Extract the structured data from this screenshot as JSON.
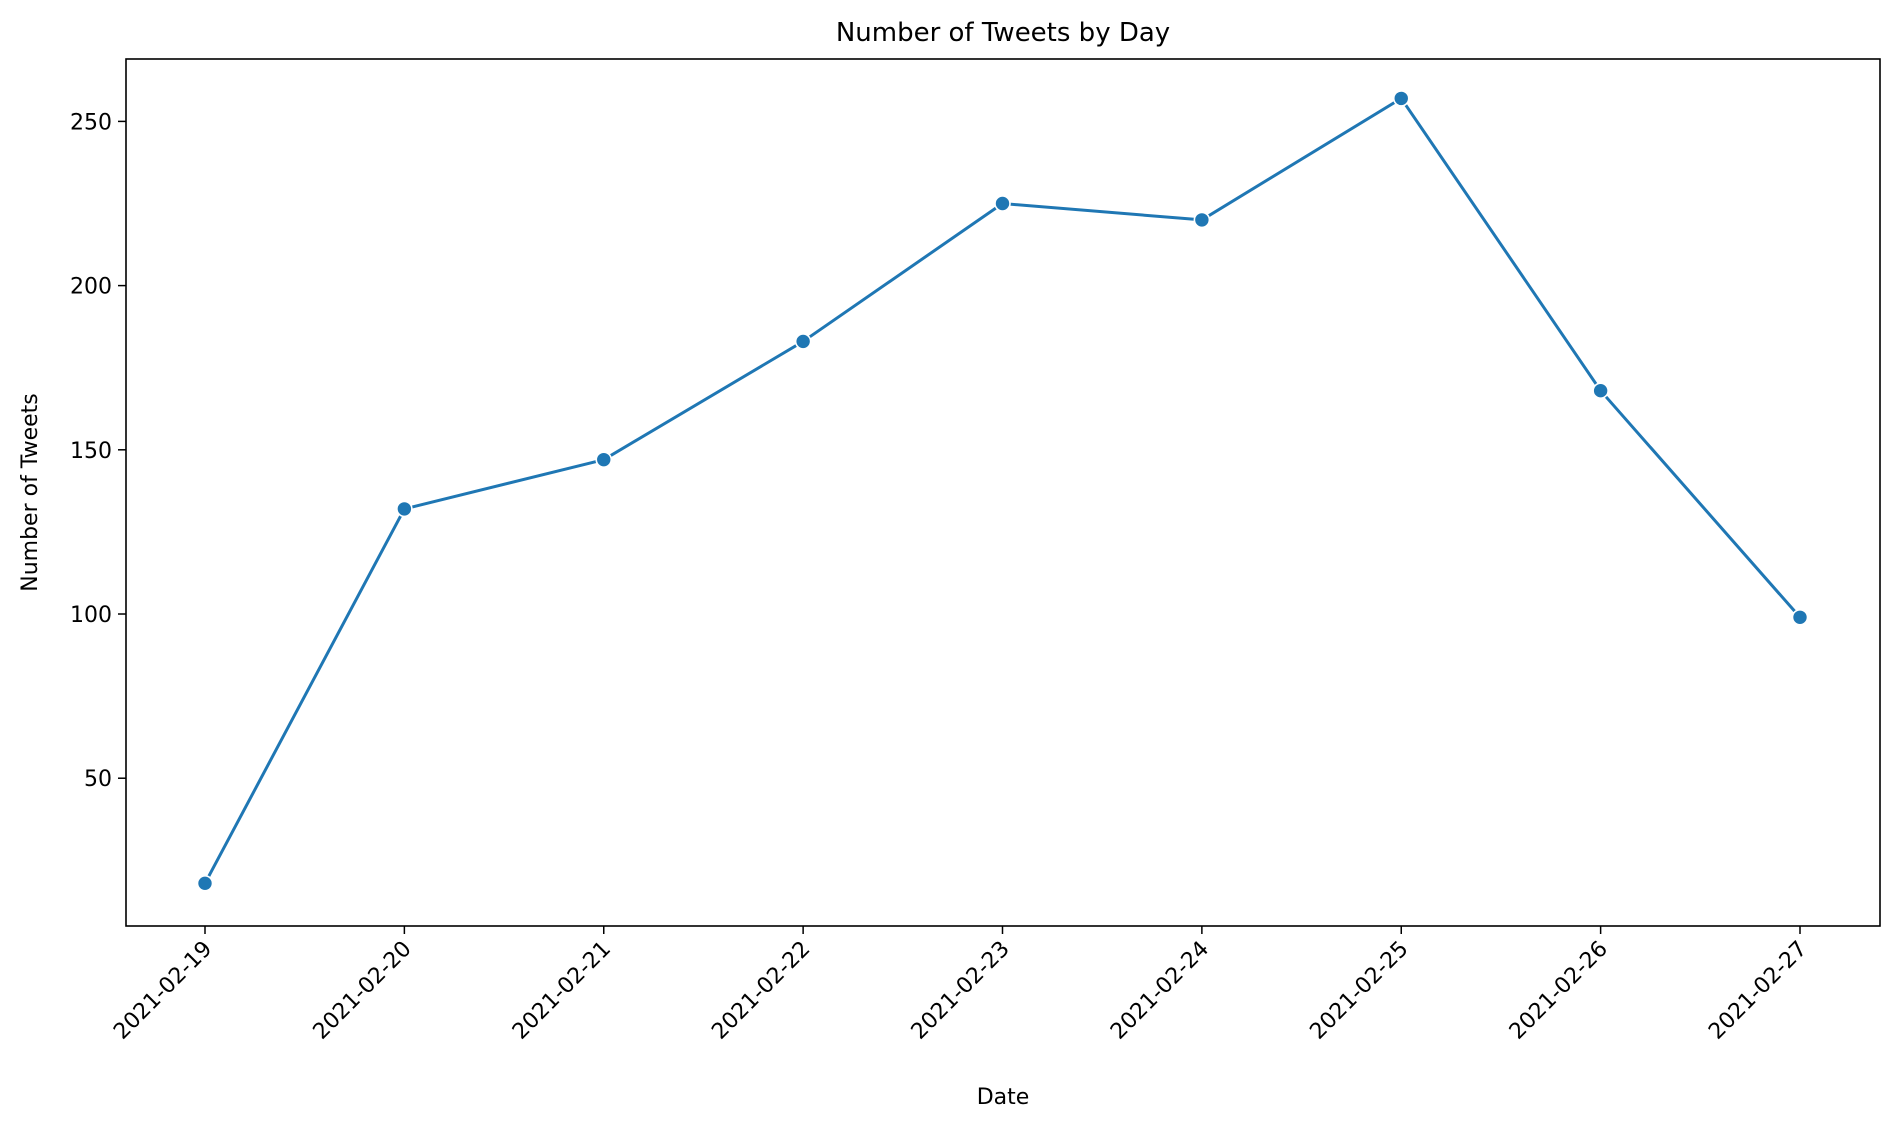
{
  "chart_data": {
    "type": "line",
    "title": "Number of Tweets by Day",
    "xlabel": "Date",
    "ylabel": "Number of Tweets",
    "x": [
      "2021-02-19",
      "2021-02-20",
      "2021-02-21",
      "2021-02-22",
      "2021-02-23",
      "2021-02-24",
      "2021-02-25",
      "2021-02-26",
      "2021-02-27"
    ],
    "series": [
      {
        "values": [
          18,
          132,
          147,
          183,
          225,
          220,
          257,
          168,
          99
        ]
      }
    ],
    "ylim": [
      5,
      269
    ],
    "yticks": [
      50,
      100,
      150,
      200,
      250
    ],
    "grid": false,
    "color": "#1f77b4",
    "marker": "circle"
  }
}
